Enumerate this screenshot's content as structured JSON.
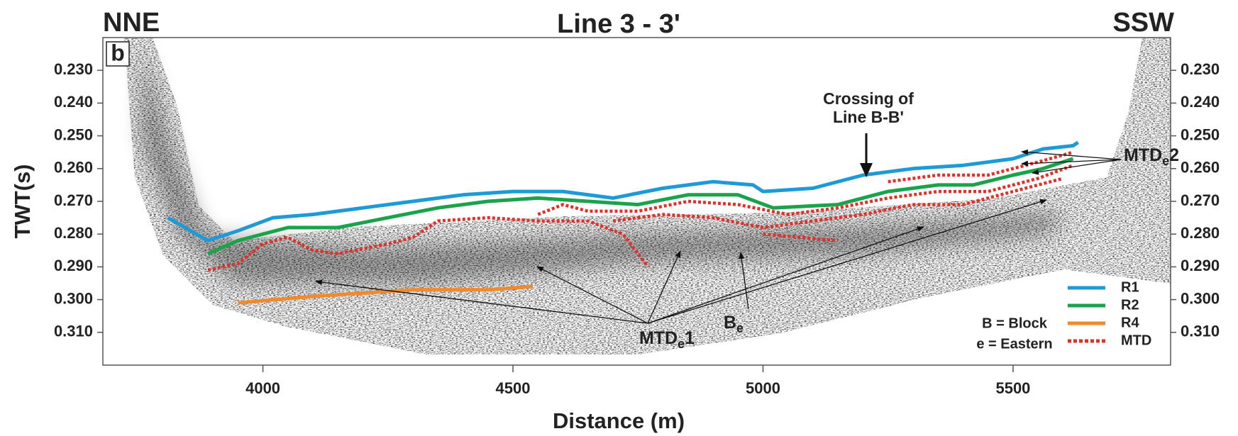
{
  "chart_data": {
    "type": "line",
    "title": "Line 3 - 3'",
    "panel_label": "b",
    "left_label": "NNE",
    "right_label": "SSW",
    "x_label": "Distance (m)",
    "y_label": "TWT(s)",
    "xlim": [
      3680,
      5815
    ],
    "xticks": [
      4000,
      4500,
      5000,
      5500
    ],
    "ylim": [
      0.32,
      0.22
    ],
    "y_inverted": true,
    "yticks": [
      {
        "value": 0.23,
        "label": "0.230"
      },
      {
        "value": 0.24,
        "label": "0.240"
      },
      {
        "value": 0.25,
        "label": "0.250"
      },
      {
        "value": 0.26,
        "label": "0.260"
      },
      {
        "value": 0.27,
        "label": "0.270"
      },
      {
        "value": 0.28,
        "label": "0.280"
      },
      {
        "value": 0.29,
        "label": "0.290"
      },
      {
        "value": 0.3,
        "label": "0.300"
      },
      {
        "value": 0.31,
        "label": "0.310"
      }
    ],
    "grid": false,
    "legend": "lower right",
    "series": [
      {
        "name": "R1",
        "color": "#1e9ad6",
        "dash": false,
        "x": [
          3810,
          3890,
          3950,
          4020,
          4100,
          4200,
          4300,
          4400,
          4500,
          4600,
          4700,
          4800,
          4900,
          4980,
          5000,
          5100,
          5200,
          5300,
          5400,
          5500,
          5560,
          5620,
          5630
        ],
        "values": [
          0.275,
          0.282,
          0.279,
          0.275,
          0.274,
          0.272,
          0.27,
          0.268,
          0.267,
          0.267,
          0.269,
          0.266,
          0.264,
          0.265,
          0.267,
          0.266,
          0.262,
          0.26,
          0.259,
          0.257,
          0.254,
          0.253,
          0.252
        ]
      },
      {
        "name": "R2",
        "color": "#1aa34a",
        "dash": false,
        "x": [
          3890,
          3950,
          4050,
          4150,
          4250,
          4350,
          4450,
          4550,
          4650,
          4750,
          4850,
          4950,
          5020,
          5150,
          5250,
          5350,
          5420,
          5500,
          5560,
          5620
        ],
        "values": [
          0.286,
          0.282,
          0.278,
          0.278,
          0.275,
          0.272,
          0.27,
          0.269,
          0.27,
          0.271,
          0.268,
          0.268,
          0.272,
          0.271,
          0.267,
          0.265,
          0.265,
          0.262,
          0.26,
          0.257
        ]
      },
      {
        "name": "R4",
        "color": "#ef8a2e",
        "dash": false,
        "x": [
          3950,
          4100,
          4300,
          4450,
          4540
        ],
        "values": [
          0.301,
          0.299,
          0.297,
          0.297,
          0.296
        ]
      },
      {
        "name": "MTD",
        "color": "#e0302a",
        "dash": true,
        "x": [
          3890,
          3950,
          4000,
          4050,
          4100,
          4150,
          4250,
          4300,
          4350,
          4450,
          4550,
          4650,
          4720,
          4770,
          null,
          4550,
          4600,
          4650,
          4750,
          4850,
          4950,
          5050,
          5150,
          5250,
          5350,
          5450,
          5550,
          5620,
          null,
          4700,
          4800,
          4900,
          5000,
          5100,
          5200,
          5300,
          5400,
          5500,
          5600,
          null,
          5000,
          5150,
          null,
          5250,
          5350,
          5450,
          5550,
          5620
        ],
        "values": [
          0.291,
          0.289,
          0.283,
          0.281,
          0.285,
          0.286,
          0.283,
          0.281,
          0.276,
          0.275,
          0.276,
          0.276,
          0.28,
          0.29,
          null,
          0.274,
          0.271,
          0.273,
          0.273,
          0.27,
          0.271,
          0.274,
          0.272,
          0.269,
          0.267,
          0.267,
          0.263,
          0.259,
          null,
          0.276,
          0.274,
          0.275,
          0.278,
          0.276,
          0.274,
          0.271,
          0.271,
          0.267,
          0.263,
          null,
          0.28,
          0.282,
          null,
          0.264,
          0.262,
          0.262,
          0.258,
          0.255
        ]
      }
    ],
    "annotations": {
      "crossing": [
        "Crossing of",
        "Line B-B'"
      ],
      "mtd1": {
        "main": "MTD",
        "sub": "e",
        "suffix": "1"
      },
      "mtd2": {
        "main": "MTD",
        "sub": "e",
        "suffix": "2"
      },
      "block": {
        "main": "B",
        "sub": "e"
      },
      "key": [
        "B = Block",
        "e = Eastern"
      ]
    }
  }
}
